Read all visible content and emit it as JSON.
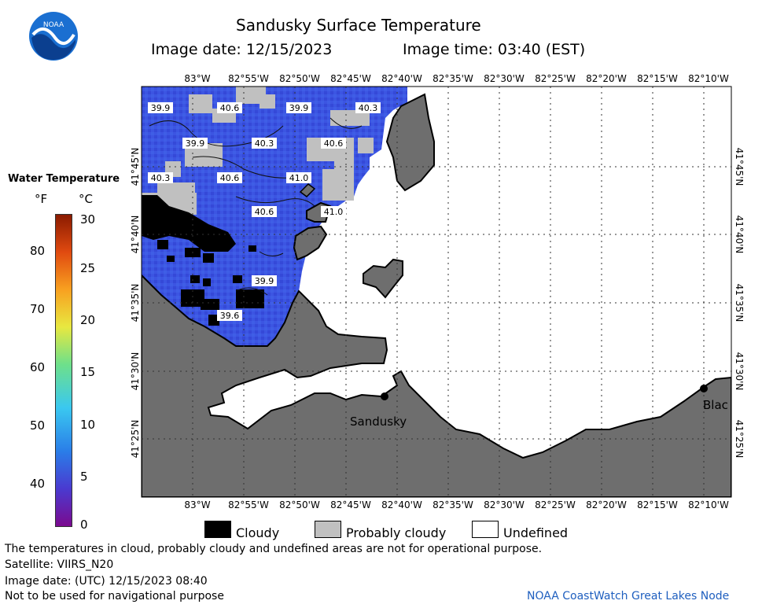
{
  "header": {
    "title": "Sandusky Surface Temperature",
    "image_date": "Image date: 12/15/2023",
    "image_time": "Image time: 03:40 (EST)"
  },
  "logo": {
    "text": "NOAA"
  },
  "colorbar": {
    "title": "Water Temperature",
    "unit_f": "°F",
    "unit_c": "°C",
    "f_ticks": [
      "80",
      "70",
      "60",
      "50",
      "40"
    ],
    "c_ticks": [
      "30",
      "25",
      "20",
      "15",
      "10",
      "5",
      "0"
    ]
  },
  "map": {
    "lon_labels": [
      "83°W",
      "82°55'W",
      "82°50'W",
      "82°45'W",
      "82°40'W",
      "82°35'W",
      "82°30'W",
      "82°25'W",
      "82°20'W",
      "82°15'W",
      "82°10'W"
    ],
    "lat_labels": [
      "41°45'N",
      "41°40'N",
      "41°35'N",
      "41°30'N",
      "41°25'N"
    ],
    "cities": [
      "Sandusky",
      "Blac"
    ],
    "temp_labels": [
      "39.9",
      "40.6",
      "39.9",
      "40.3",
      "39.9",
      "40.3",
      "40.6",
      "40.3",
      "40.6",
      "41.0",
      "40.6",
      "41.0",
      "39.9",
      "39.6"
    ],
    "colors": {
      "land": "#6e6e6e",
      "water": "#3a55e0",
      "cloudy": "#000000",
      "probably_cloudy": "#c0c0c0",
      "undefined": "#ffffff"
    }
  },
  "legend": {
    "cloudy": "Cloudy",
    "probably_cloudy": "Probably cloudy",
    "undefined": "Undefined"
  },
  "footer": {
    "disclaimer": "The temperatures in cloud, probably cloudy and undefined areas are not for operational purpose.",
    "satellite": "Satellite: VIIRS_N20",
    "utc_date": "Image date: (UTC) 12/15/2023  08:40",
    "nav_warning": "Not to be used for navigational purpose",
    "credit": "NOAA CoastWatch Great Lakes Node"
  }
}
